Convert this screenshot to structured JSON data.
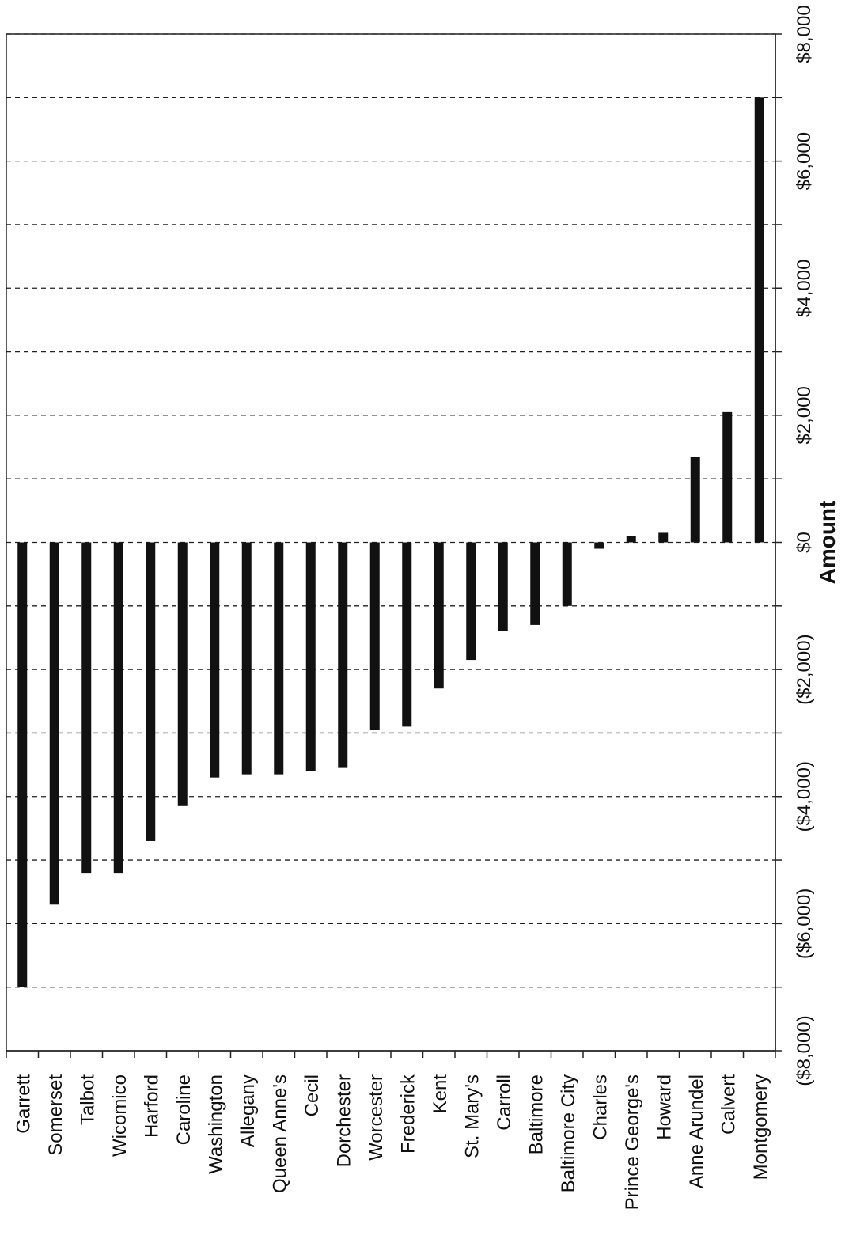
{
  "chart_data": {
    "type": "bar",
    "orientation": "horizontal",
    "xlabel": "Amount",
    "ylabel": "",
    "title": "",
    "xlim": [
      -8000,
      8000
    ],
    "grid": true,
    "tick_step": 1000,
    "tick_labels": [
      {
        "value": -8000,
        "label": "($8,000)"
      },
      {
        "value": -6000,
        "label": "($6,000)"
      },
      {
        "value": -4000,
        "label": "($4,000)"
      },
      {
        "value": -2000,
        "label": "($2,000)"
      },
      {
        "value": 0,
        "label": "$0"
      },
      {
        "value": 2000,
        "label": "$2,000"
      },
      {
        "value": 4000,
        "label": "$4,000"
      },
      {
        "value": 6000,
        "label": "$6,000"
      },
      {
        "value": 8000,
        "label": "$8,000"
      }
    ],
    "categories": [
      "Garrett",
      "Somerset",
      "Talbot",
      "Wicomico",
      "Harford",
      "Caroline",
      "Washington",
      "Allegany",
      "Queen Anne's",
      "Cecil",
      "Dorchester",
      "Worcester",
      "Frederick",
      "Kent",
      "St. Mary's",
      "Carroll",
      "Baltimore",
      "Baltimore City",
      "Charles",
      "Prince George's",
      "Howard",
      "Anne Arundel",
      "Calvert",
      "Montgomery"
    ],
    "values": [
      -7000,
      -5700,
      -5200,
      -5200,
      -4700,
      -4150,
      -3700,
      -3650,
      -3650,
      -3600,
      -3550,
      -2950,
      -2900,
      -2300,
      -1850,
      -1400,
      -1300,
      -1000,
      -100,
      100,
      150,
      1350,
      2050,
      7000
    ],
    "bar_color": "#111111"
  }
}
